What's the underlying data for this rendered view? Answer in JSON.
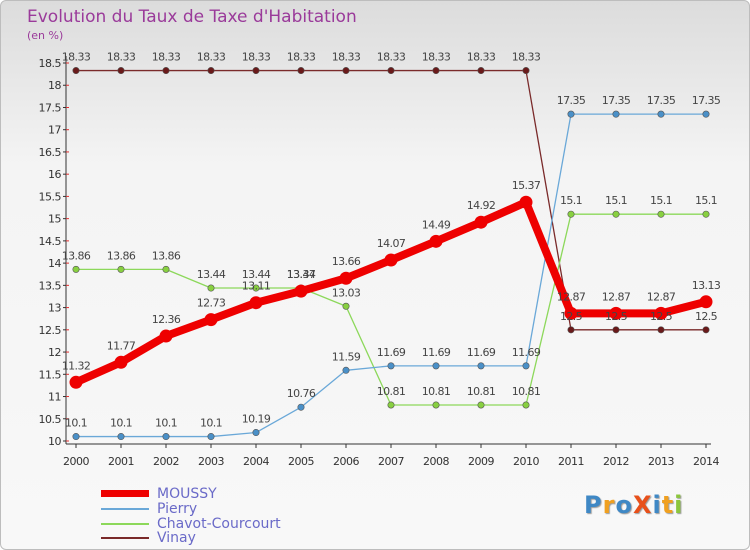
{
  "title": "Evolution du Taux de Taxe d'Habitation",
  "subtitle": "(en %)",
  "brand": {
    "text": "ProXiti",
    "colors": [
      "#3f88c5",
      "#f0a020",
      "#3f88c5",
      "#e8501a",
      "#3f88c5",
      "#f0a020",
      "#8cc63e"
    ]
  },
  "chart_data": {
    "type": "line",
    "x": [
      "2000",
      "2001",
      "2002",
      "2003",
      "2004",
      "2005",
      "2006",
      "2007",
      "2008",
      "2009",
      "2010",
      "2011",
      "2012",
      "2013",
      "2014"
    ],
    "ylim": [
      10,
      18.5
    ],
    "yticks": [
      "10",
      "10.5",
      "11",
      "11.5",
      "12",
      "12.5",
      "13",
      "13.5",
      "14",
      "14.5",
      "15",
      "15.5",
      "16",
      "16.5",
      "17",
      "17.5",
      "18",
      "18.5"
    ],
    "grid": false,
    "legend_position": "bottom-left",
    "series": [
      {
        "name": "MOUSSY",
        "color": "#ee0000",
        "markerColor": "#ee0000",
        "values": [
          11.32,
          11.77,
          12.36,
          12.73,
          13.11,
          13.37,
          13.66,
          14.07,
          14.49,
          14.92,
          15.37,
          12.87,
          12.87,
          12.87,
          13.13
        ]
      },
      {
        "name": "Pierry",
        "color": "#6aa8d8",
        "markerColor": "#4a90c8",
        "values": [
          10.1,
          10.1,
          10.1,
          10.1,
          10.19,
          10.76,
          11.59,
          11.69,
          11.69,
          11.69,
          11.69,
          17.35,
          17.35,
          17.35,
          17.35
        ]
      },
      {
        "name": "Chavot-Courcourt",
        "color": "#8cd85a",
        "markerColor": "#88d040",
        "values": [
          13.86,
          13.86,
          13.86,
          13.44,
          13.44,
          13.44,
          13.03,
          10.81,
          10.81,
          10.81,
          10.81,
          15.1,
          15.1,
          15.1,
          15.1
        ]
      },
      {
        "name": "Vinay",
        "color": "#7a2a2a",
        "markerColor": "#6a1a1a",
        "values": [
          18.33,
          18.33,
          18.33,
          18.33,
          18.33,
          18.33,
          18.33,
          18.33,
          18.33,
          18.33,
          18.33,
          12.5,
          12.5,
          12.5,
          12.5
        ]
      }
    ]
  }
}
